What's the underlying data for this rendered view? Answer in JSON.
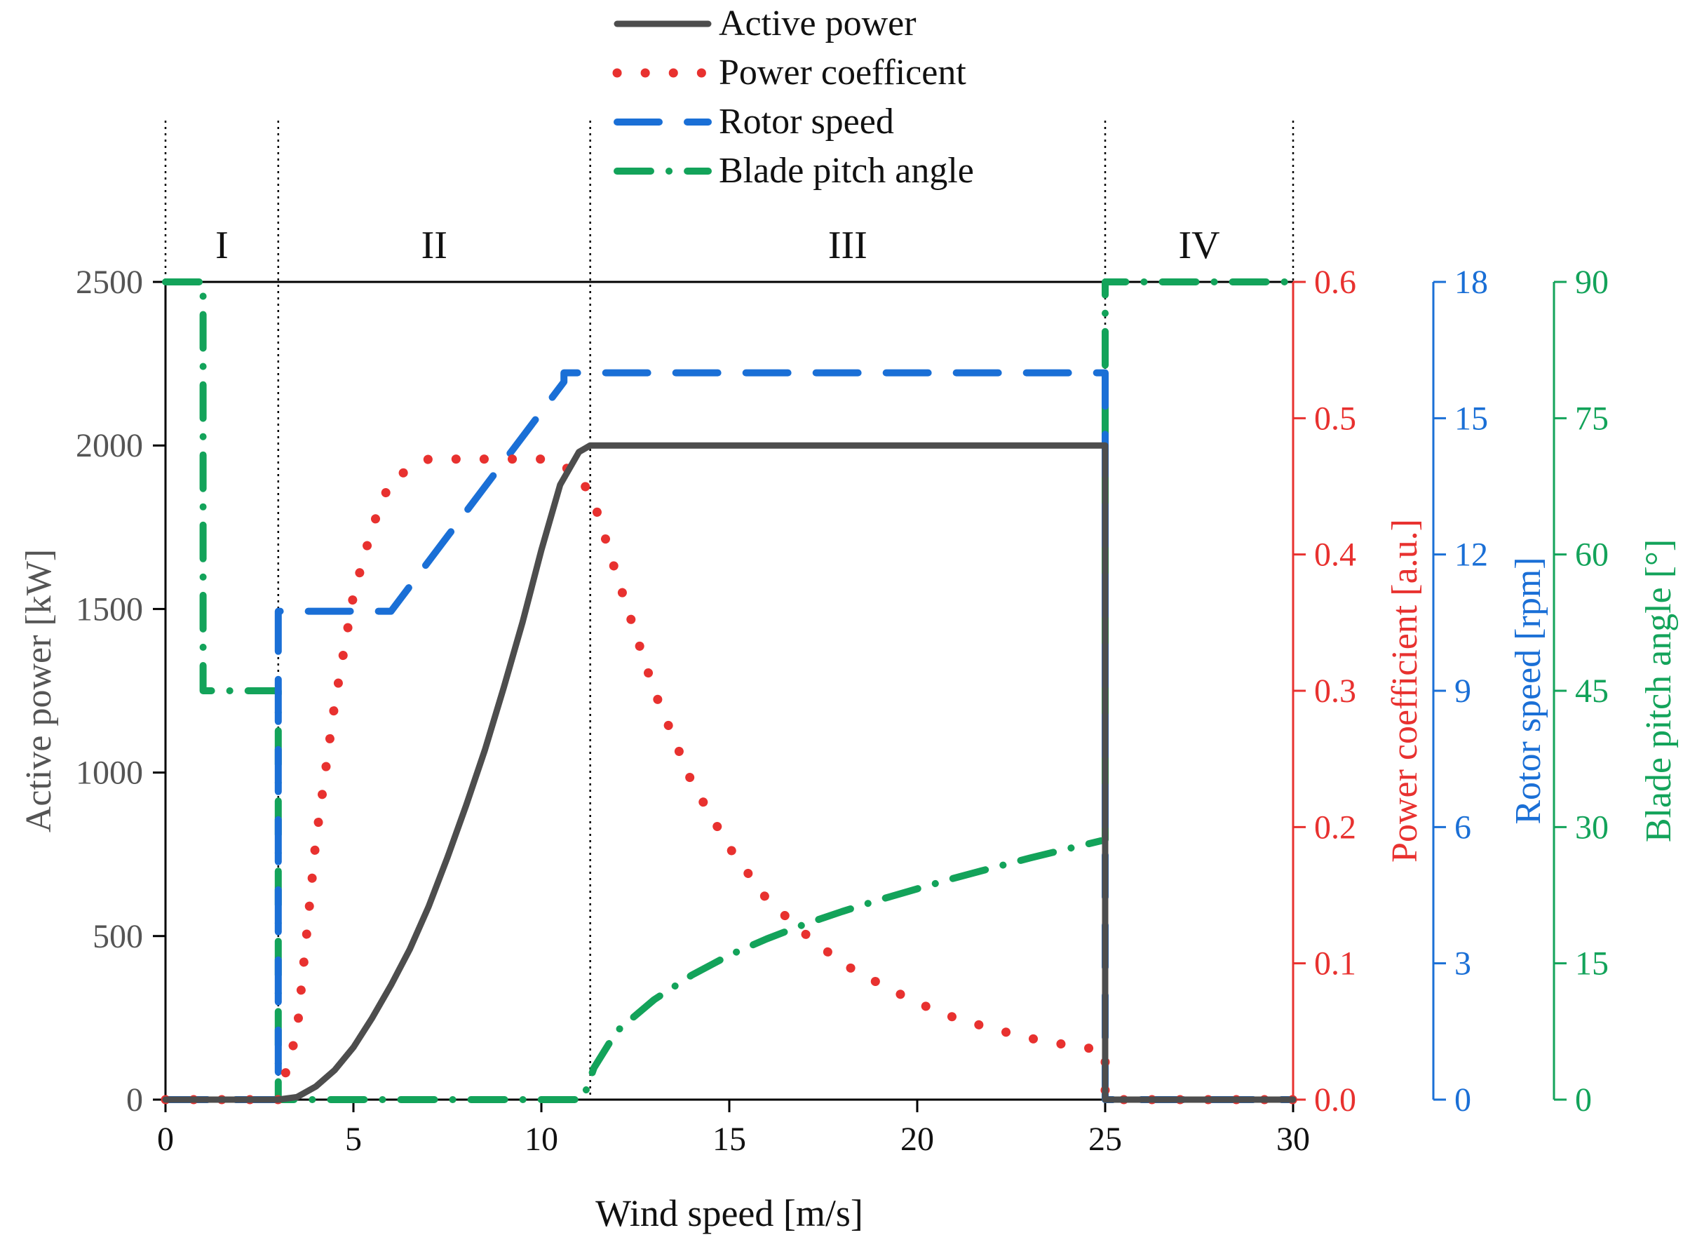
{
  "chart_data": {
    "type": "line",
    "xlabel": "Wind speed [m/s]",
    "xlim": [
      0,
      30
    ],
    "xticks": [
      0,
      5,
      10,
      15,
      20,
      25,
      30
    ],
    "axes": {
      "left": {
        "label": "Active power [kW]",
        "ylim": [
          0,
          2500
        ],
        "ticks": [
          0,
          500,
          1000,
          1500,
          2000,
          2500
        ],
        "color": "#555555"
      },
      "red": {
        "label": "Power coefficient [a.u.]",
        "ylim": [
          0,
          0.6
        ],
        "ticks": [
          0.0,
          0.1,
          0.2,
          0.3,
          0.4,
          0.5,
          0.6
        ],
        "decimals": 1,
        "color": "#e8312f"
      },
      "blue": {
        "label": "Rotor speed [rpm]",
        "ylim": [
          0,
          18
        ],
        "ticks": [
          0,
          3,
          6,
          9,
          12,
          15,
          18
        ],
        "color": "#1a6fd6"
      },
      "green": {
        "label": "Blade pitch angle [°]",
        "ylim": [
          0,
          90
        ],
        "ticks": [
          0,
          15,
          30,
          45,
          60,
          75,
          90
        ],
        "color": "#13a35a"
      }
    },
    "regions": [
      {
        "label": "I",
        "from": 0,
        "to": 3
      },
      {
        "label": "II",
        "from": 3,
        "to": 11.3
      },
      {
        "label": "III",
        "from": 11.3,
        "to": 25
      },
      {
        "label": "IV",
        "from": 25,
        "to": 30
      }
    ],
    "region_boundaries": [
      0,
      3,
      11.3,
      25,
      30
    ],
    "legend": {
      "placement": "top-center"
    },
    "series": [
      {
        "name": "Active power",
        "axis": "left",
        "color": "#4d4d4d",
        "style": "solid",
        "x": [
          0,
          3,
          3.5,
          4,
          4.5,
          5,
          5.5,
          6,
          6.5,
          7,
          7.5,
          8,
          8.5,
          9,
          9.5,
          10,
          10.5,
          11,
          11.3,
          25,
          25,
          30
        ],
        "y": [
          0,
          0,
          8,
          40,
          90,
          160,
          250,
          350,
          460,
          590,
          740,
          900,
          1070,
          1260,
          1460,
          1680,
          1880,
          1980,
          2000,
          2000,
          0,
          0
        ]
      },
      {
        "name": "Power coefficent",
        "axis": "red",
        "color": "#e8312f",
        "style": "dotted",
        "x": [
          0,
          3,
          3.5,
          4,
          4.5,
          5,
          5.5,
          6,
          7,
          8,
          9,
          10,
          11,
          11.5,
          12,
          13,
          14,
          15,
          16,
          17,
          18,
          19,
          20,
          21,
          22,
          23,
          24,
          25,
          25,
          30
        ],
        "y": [
          0,
          0,
          0.05,
          0.19,
          0.29,
          0.37,
          0.42,
          0.455,
          0.47,
          0.47,
          0.47,
          0.47,
          0.46,
          0.43,
          0.385,
          0.3,
          0.233,
          0.185,
          0.147,
          0.122,
          0.1,
          0.085,
          0.071,
          0.06,
          0.052,
          0.045,
          0.04,
          0.036,
          0,
          0
        ]
      },
      {
        "name": "Rotor speed",
        "axis": "blue",
        "color": "#1a6fd6",
        "style": "dashed",
        "x": [
          0,
          3,
          3,
          6,
          10.6,
          10.6,
          11.3,
          25,
          25,
          30
        ],
        "y": [
          0,
          0,
          10.75,
          10.75,
          15.8,
          16,
          16,
          16,
          0,
          0
        ]
      },
      {
        "name": "Blade pitch angle",
        "axis": "green",
        "color": "#13a35a",
        "style": "dash-dot",
        "x": [
          0,
          1,
          1,
          3,
          3,
          11.1,
          11.4,
          12,
          13,
          14,
          15,
          16,
          17,
          18,
          19,
          20,
          21,
          22,
          23,
          24,
          25,
          25,
          30
        ],
        "y": [
          90,
          90,
          45,
          45,
          0,
          0,
          3.5,
          7.5,
          11,
          13.7,
          15.9,
          17.7,
          19.3,
          20.7,
          22,
          23.2,
          24.4,
          25.5,
          26.6,
          27.6,
          28.6,
          90,
          90
        ]
      }
    ]
  }
}
